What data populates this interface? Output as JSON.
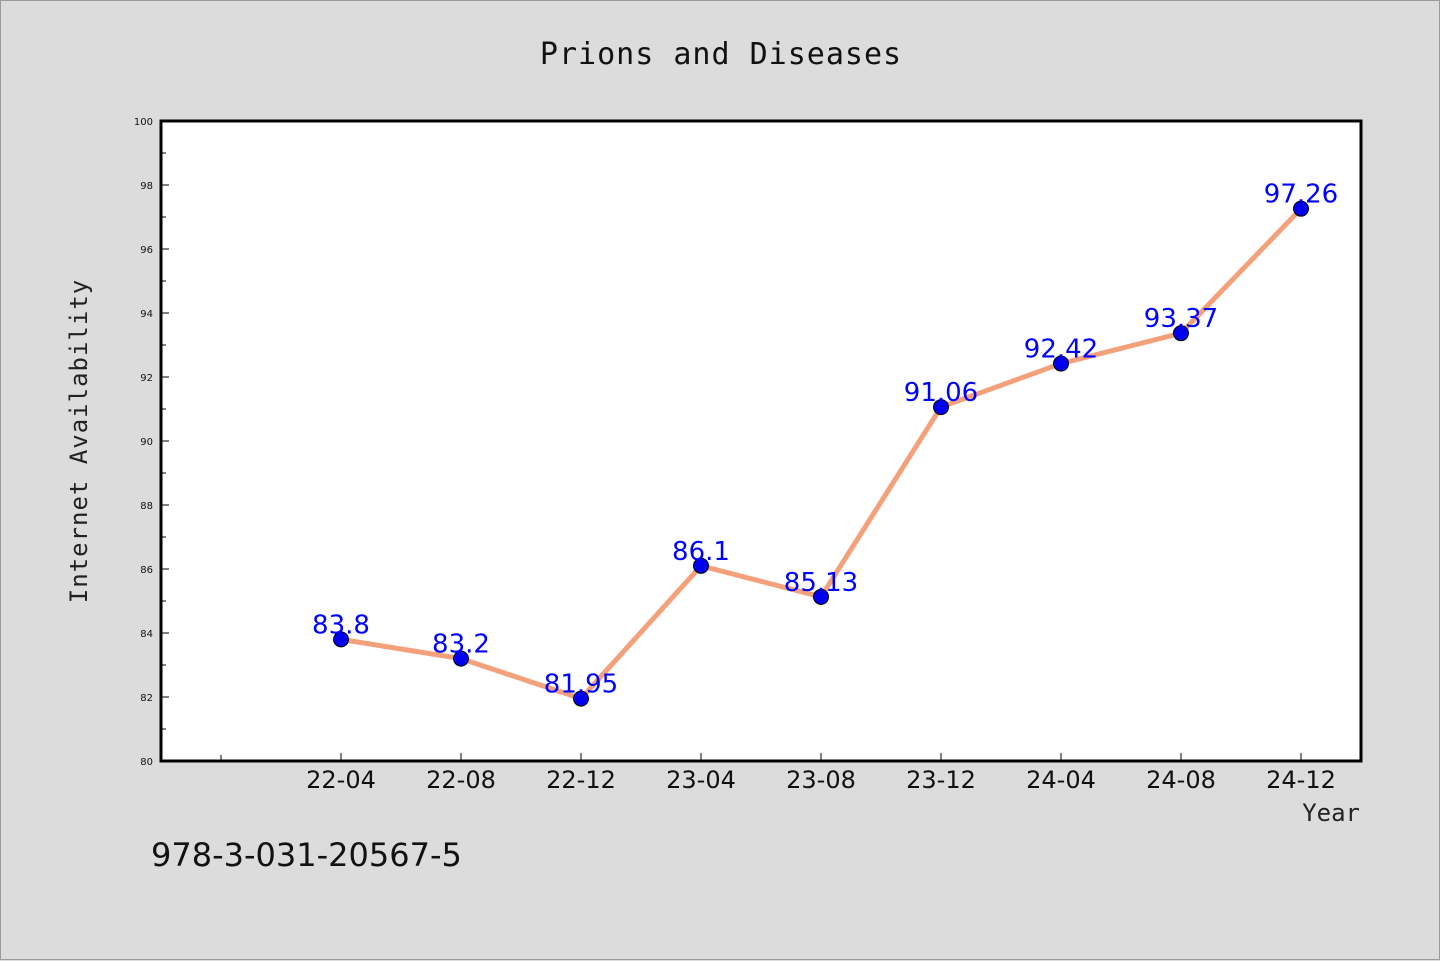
{
  "chart_data": {
    "type": "line",
    "title": "Prions and Diseases",
    "xlabel": "Year",
    "ylabel": "Internet Availability",
    "categories": [
      "22-04",
      "22-08",
      "22-12",
      "23-04",
      "23-08",
      "23-12",
      "24-04",
      "24-08",
      "24-12"
    ],
    "series": [
      {
        "values": [
          83.8,
          83.2,
          81.95,
          86.1,
          85.13,
          91.06,
          92.42,
          93.37,
          97.26
        ],
        "labels": [
          "83.8",
          "83.2",
          "81.95",
          "86.1",
          "85.13",
          "91.06",
          "92.42",
          "93.37",
          "97.26"
        ],
        "line_color": "#f4a07a",
        "marker_color": "#0000ee"
      }
    ],
    "ylim": [
      80,
      100
    ],
    "yticks": [
      80,
      82,
      84,
      86,
      88,
      90,
      92,
      94,
      96,
      98,
      100
    ],
    "ytick_labels": [
      "80",
      "82",
      "84",
      "86",
      "88",
      "90",
      "92",
      "94",
      "96",
      "98",
      "100"
    ],
    "grid": false,
    "legend": "none",
    "label_color": "#0000ff"
  },
  "footer": {
    "isbn": "978-3-031-20567-5"
  }
}
